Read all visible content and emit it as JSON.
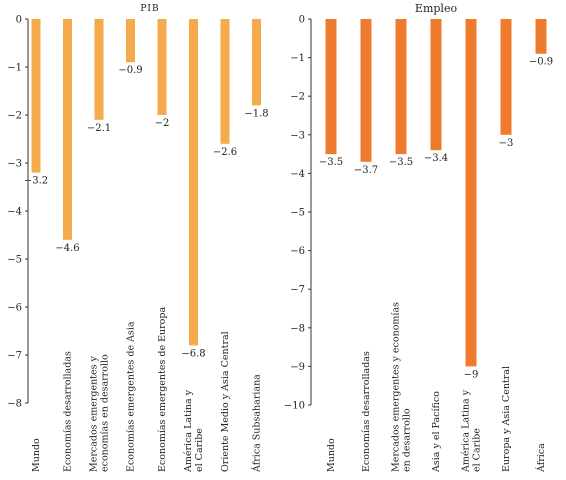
{
  "chart_data": [
    {
      "type": "bar",
      "title": "PIB",
      "ylim": [
        -8,
        0
      ],
      "yticks": [
        0,
        -1,
        -2,
        -3,
        -4,
        -5,
        -6,
        -7,
        -8
      ],
      "categories": [
        [
          "Mundo"
        ],
        [
          "Economías desarrolladas"
        ],
        [
          "Mercados emergentes y",
          "economías en desarrollo"
        ],
        [
          "Economías emergentes de Asia"
        ],
        [
          "Economías emergentes de Europa"
        ],
        [
          "América Latina y",
          "el Caribe"
        ],
        [
          "Oriente Medio y Asia Central"
        ],
        [
          "África Subsahariana"
        ]
      ],
      "values": [
        -3.2,
        -4.6,
        -2.1,
        -0.9,
        -2,
        -6.8,
        -2.6,
        -1.8
      ],
      "value_labels": [
        "−3.2",
        "−4.6",
        "−2.1",
        "−0.9",
        "−2",
        "−6.8",
        "−2.6",
        "−1.8"
      ],
      "color": "#F5AA4C"
    },
    {
      "type": "bar",
      "title": "Empleo",
      "ylim": [
        -10,
        0
      ],
      "yticks": [
        0,
        -1,
        -2,
        -3,
        -4,
        -5,
        -6,
        -7,
        -8,
        -9,
        -10
      ],
      "categories": [
        [
          "Mundo"
        ],
        [
          "Economías desarrolladas"
        ],
        [
          "Mercados emergentes y economías",
          "en desarrollo"
        ],
        [
          "Asia y el Pacífico"
        ],
        [
          "América Latina y",
          "el Caribe"
        ],
        [
          "Europa y Asia Central"
        ],
        [
          "África"
        ]
      ],
      "values": [
        -3.5,
        -3.7,
        -3.5,
        -3.4,
        -9,
        -3,
        -0.9
      ],
      "value_labels": [
        "−3.5",
        "−3.7",
        "−3.5",
        "−3.4",
        "−9",
        "−3",
        "−0.9"
      ],
      "color": "#EE7B2D"
    }
  ]
}
